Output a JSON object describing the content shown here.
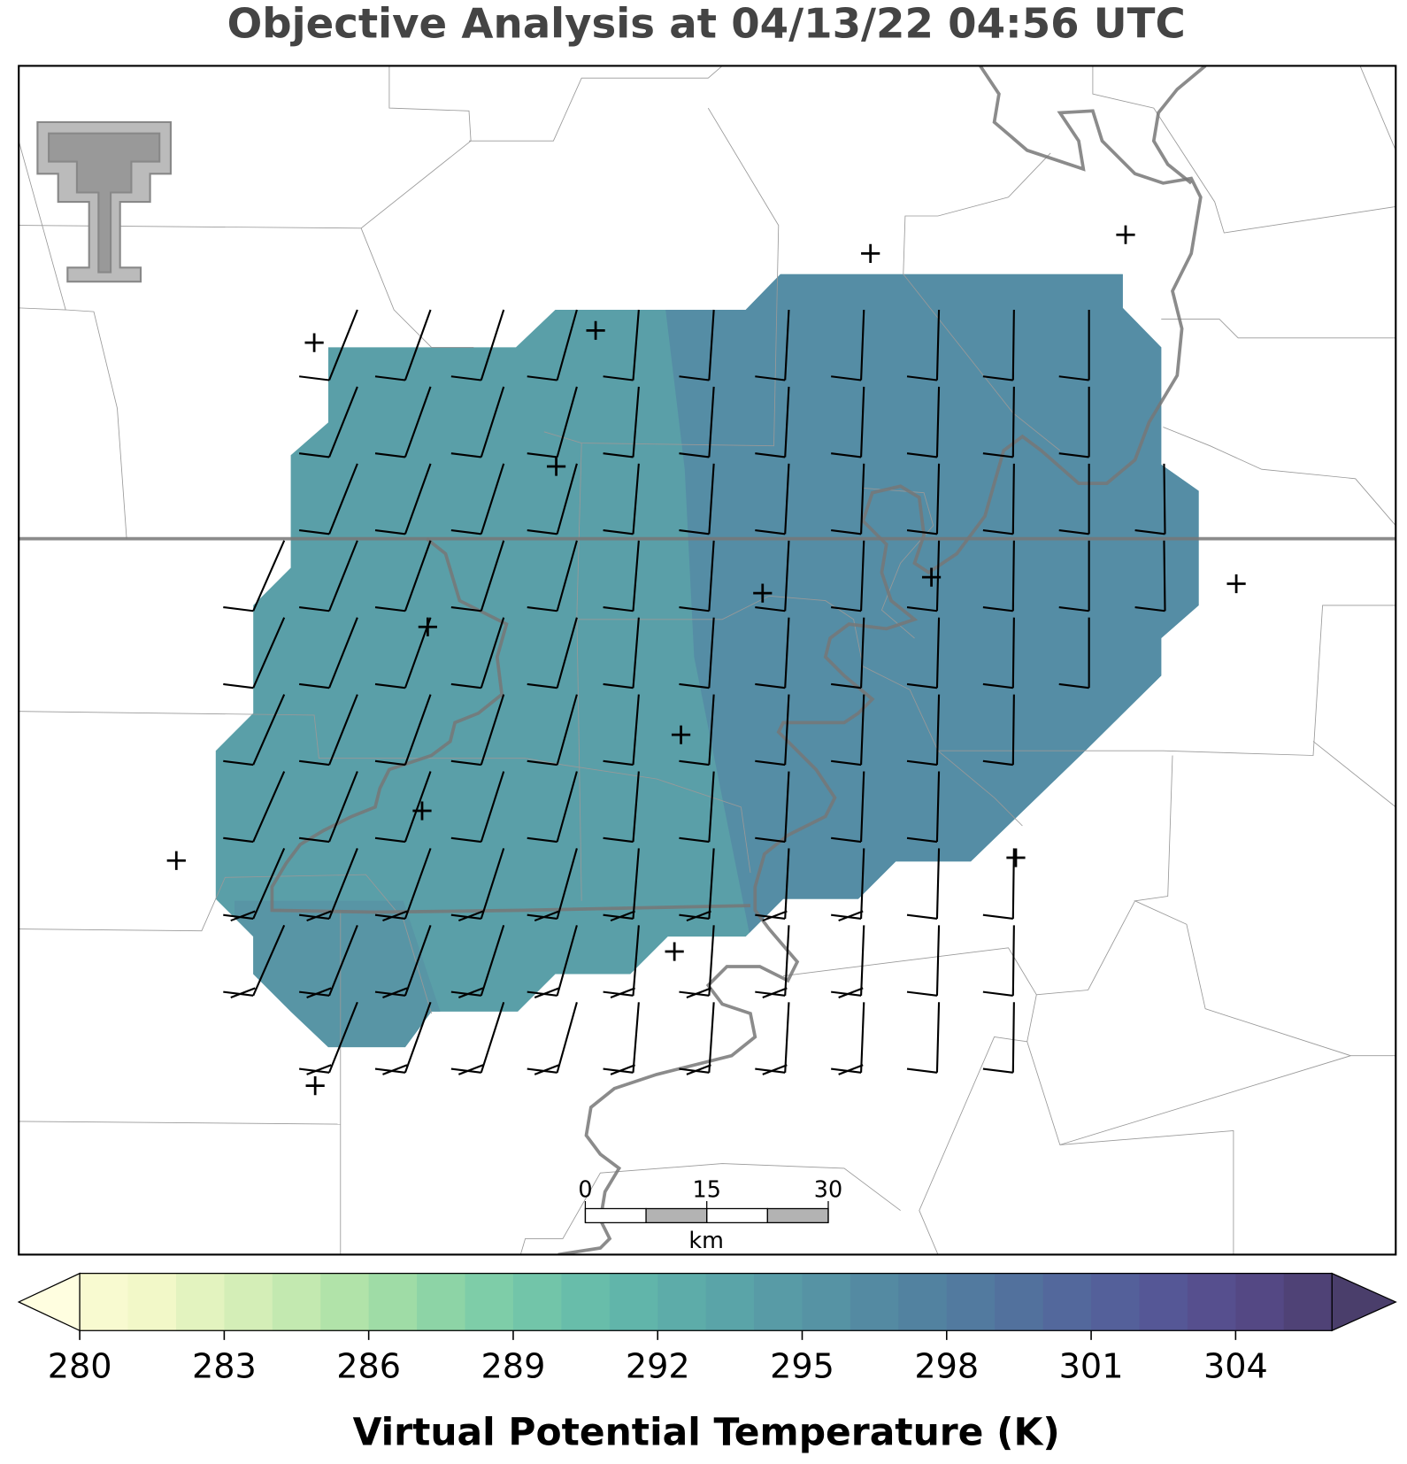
{
  "title": "Objective Analysis at 04/13/22 04:56 UTC",
  "scale_bar": {
    "ticks": [
      0,
      15,
      30
    ],
    "unit": "km"
  },
  "colorbar": {
    "label": "Virtual Potential Temperature (K)",
    "range": [
      280,
      306
    ],
    "ticks": [
      280,
      283,
      286,
      289,
      292,
      295,
      298,
      301,
      304
    ],
    "under_color": "#fffee0",
    "over_color": "#4a3e6b",
    "colors": [
      "#f8fad0",
      "#f2f8c8",
      "#e3f3bf",
      "#d4eeb7",
      "#c3e9b0",
      "#b1e3a9",
      "#9fdca6",
      "#8dd4a6",
      "#7ecda8",
      "#72c5a9",
      "#68bdaa",
      "#61b5aa",
      "#5daca9",
      "#5aa4a8",
      "#589ba6",
      "#5693a4",
      "#548aa2",
      "#5282a0",
      "#527a9f",
      "#52719d",
      "#53689c",
      "#54609a",
      "#555796",
      "#564f8e",
      "#544884",
      "#4f4276"
    ]
  }
}
